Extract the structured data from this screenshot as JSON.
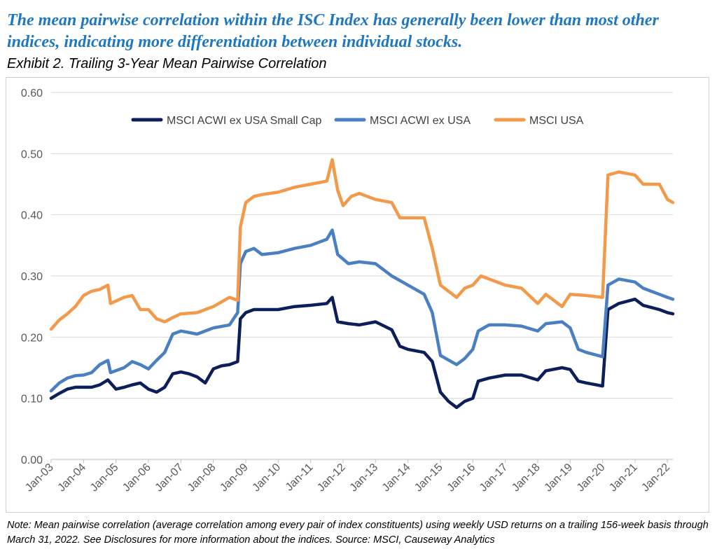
{
  "headline": "The mean pairwise correlation within the ISC Index has generally been lower than most other indices, indicating more differentiation between individual stocks.",
  "exhibit_title": "Exhibit 2. Trailing 3-Year Mean Pairwise Correlation",
  "note": "Note: Mean pairwise correlation (average correlation among every pair of index constituents) using weekly USD returns on a trailing 156-week basis through March 31, 2022.   See Disclosures for more information about the indices.   Source: MSCI, Causeway Analytics",
  "colors": {
    "small_cap": "#0c1f5a",
    "acwi_ex_usa": "#4a7fc1",
    "usa": "#f2994a"
  },
  "chart_data": {
    "type": "line",
    "xlabel": "",
    "ylabel": "",
    "ylim": [
      0,
      0.6
    ],
    "yticks": [
      "0.00",
      "0.10",
      "0.20",
      "0.30",
      "0.40",
      "0.50",
      "0.60"
    ],
    "xticks": [
      "Jan-03",
      "Jan-04",
      "Jan-05",
      "Jan-06",
      "Jan-07",
      "Jan-08",
      "Jan-09",
      "Jan-10",
      "Jan-11",
      "Jan-12",
      "Jan-13",
      "Jan-14",
      "Jan-15",
      "Jan-16",
      "Jan-17",
      "Jan-18",
      "Jan-19",
      "Jan-20",
      "Jan-21",
      "Jan-22"
    ],
    "xrange": [
      "2003-01",
      "2022-03"
    ],
    "grid": "horizontal",
    "legend": "top",
    "series": [
      {
        "name": "MSCI ACWI ex USA Small Cap",
        "color": "#0c1f5a",
        "points": [
          [
            "2003-01",
            0.1
          ],
          [
            "2003-04",
            0.108
          ],
          [
            "2003-07",
            0.115
          ],
          [
            "2003-10",
            0.118
          ],
          [
            "2004-01",
            0.118
          ],
          [
            "2004-04",
            0.118
          ],
          [
            "2004-07",
            0.122
          ],
          [
            "2004-10",
            0.13
          ],
          [
            "2005-01",
            0.115
          ],
          [
            "2005-04",
            0.118
          ],
          [
            "2005-07",
            0.122
          ],
          [
            "2005-10",
            0.125
          ],
          [
            "2006-01",
            0.115
          ],
          [
            "2006-04",
            0.11
          ],
          [
            "2006-07",
            0.118
          ],
          [
            "2006-10",
            0.14
          ],
          [
            "2007-01",
            0.143
          ],
          [
            "2007-04",
            0.14
          ],
          [
            "2007-07",
            0.135
          ],
          [
            "2007-10",
            0.125
          ],
          [
            "2008-01",
            0.148
          ],
          [
            "2008-04",
            0.153
          ],
          [
            "2008-07",
            0.155
          ],
          [
            "2008-10",
            0.16
          ],
          [
            "2008-11",
            0.23
          ],
          [
            "2009-01",
            0.24
          ],
          [
            "2009-04",
            0.245
          ],
          [
            "2009-07",
            0.245
          ],
          [
            "2010-01",
            0.245
          ],
          [
            "2010-07",
            0.25
          ],
          [
            "2011-01",
            0.252
          ],
          [
            "2011-07",
            0.255
          ],
          [
            "2011-09",
            0.265
          ],
          [
            "2011-11",
            0.225
          ],
          [
            "2012-03",
            0.222
          ],
          [
            "2012-07",
            0.22
          ],
          [
            "2013-01",
            0.225
          ],
          [
            "2013-07",
            0.212
          ],
          [
            "2013-10",
            0.185
          ],
          [
            "2014-01",
            0.18
          ],
          [
            "2014-07",
            0.175
          ],
          [
            "2014-10",
            0.16
          ],
          [
            "2015-01",
            0.11
          ],
          [
            "2015-04",
            0.095
          ],
          [
            "2015-07",
            0.085
          ],
          [
            "2015-10",
            0.095
          ],
          [
            "2016-01",
            0.1
          ],
          [
            "2016-03",
            0.128
          ],
          [
            "2016-07",
            0.133
          ],
          [
            "2017-01",
            0.138
          ],
          [
            "2017-07",
            0.138
          ],
          [
            "2018-01",
            0.13
          ],
          [
            "2018-04",
            0.145
          ],
          [
            "2018-10",
            0.15
          ],
          [
            "2019-01",
            0.147
          ],
          [
            "2019-04",
            0.128
          ],
          [
            "2019-07",
            0.125
          ],
          [
            "2020-01",
            0.12
          ],
          [
            "2020-03",
            0.245
          ],
          [
            "2020-07",
            0.255
          ],
          [
            "2021-01",
            0.262
          ],
          [
            "2021-04",
            0.252
          ],
          [
            "2021-10",
            0.245
          ],
          [
            "2022-01",
            0.24
          ],
          [
            "2022-03",
            0.238
          ]
        ]
      },
      {
        "name": "MSCI ACWI ex USA",
        "color": "#4a7fc1",
        "points": [
          [
            "2003-01",
            0.112
          ],
          [
            "2003-04",
            0.125
          ],
          [
            "2003-07",
            0.133
          ],
          [
            "2003-10",
            0.137
          ],
          [
            "2004-01",
            0.138
          ],
          [
            "2004-04",
            0.142
          ],
          [
            "2004-07",
            0.155
          ],
          [
            "2004-10",
            0.162
          ],
          [
            "2004-11",
            0.142
          ],
          [
            "2005-04",
            0.15
          ],
          [
            "2005-07",
            0.16
          ],
          [
            "2005-10",
            0.155
          ],
          [
            "2006-01",
            0.148
          ],
          [
            "2006-04",
            0.162
          ],
          [
            "2006-07",
            0.175
          ],
          [
            "2006-10",
            0.205
          ],
          [
            "2007-01",
            0.21
          ],
          [
            "2007-07",
            0.205
          ],
          [
            "2008-01",
            0.215
          ],
          [
            "2008-07",
            0.22
          ],
          [
            "2008-10",
            0.24
          ],
          [
            "2008-11",
            0.32
          ],
          [
            "2009-01",
            0.34
          ],
          [
            "2009-04",
            0.345
          ],
          [
            "2009-07",
            0.335
          ],
          [
            "2010-01",
            0.338
          ],
          [
            "2010-07",
            0.345
          ],
          [
            "2011-01",
            0.35
          ],
          [
            "2011-07",
            0.36
          ],
          [
            "2011-09",
            0.375
          ],
          [
            "2011-11",
            0.335
          ],
          [
            "2012-03",
            0.32
          ],
          [
            "2012-07",
            0.323
          ],
          [
            "2013-01",
            0.32
          ],
          [
            "2013-07",
            0.3
          ],
          [
            "2014-01",
            0.285
          ],
          [
            "2014-07",
            0.27
          ],
          [
            "2014-10",
            0.24
          ],
          [
            "2015-01",
            0.17
          ],
          [
            "2015-07",
            0.155
          ],
          [
            "2015-10",
            0.165
          ],
          [
            "2016-01",
            0.18
          ],
          [
            "2016-03",
            0.21
          ],
          [
            "2016-07",
            0.22
          ],
          [
            "2017-01",
            0.22
          ],
          [
            "2017-07",
            0.218
          ],
          [
            "2018-01",
            0.21
          ],
          [
            "2018-04",
            0.222
          ],
          [
            "2018-10",
            0.225
          ],
          [
            "2019-01",
            0.215
          ],
          [
            "2019-04",
            0.18
          ],
          [
            "2019-07",
            0.175
          ],
          [
            "2020-01",
            0.168
          ],
          [
            "2020-03",
            0.285
          ],
          [
            "2020-07",
            0.295
          ],
          [
            "2021-01",
            0.29
          ],
          [
            "2021-04",
            0.28
          ],
          [
            "2021-10",
            0.27
          ],
          [
            "2022-01",
            0.265
          ],
          [
            "2022-03",
            0.262
          ]
        ]
      },
      {
        "name": "MSCI USA",
        "color": "#f2994a",
        "points": [
          [
            "2003-01",
            0.213
          ],
          [
            "2003-04",
            0.228
          ],
          [
            "2003-07",
            0.238
          ],
          [
            "2003-10",
            0.25
          ],
          [
            "2004-01",
            0.268
          ],
          [
            "2004-04",
            0.275
          ],
          [
            "2004-07",
            0.278
          ],
          [
            "2004-10",
            0.285
          ],
          [
            "2004-11",
            0.255
          ],
          [
            "2005-04",
            0.265
          ],
          [
            "2005-07",
            0.268
          ],
          [
            "2005-10",
            0.245
          ],
          [
            "2006-01",
            0.245
          ],
          [
            "2006-04",
            0.23
          ],
          [
            "2006-07",
            0.225
          ],
          [
            "2006-10",
            0.232
          ],
          [
            "2007-01",
            0.238
          ],
          [
            "2007-07",
            0.24
          ],
          [
            "2008-01",
            0.25
          ],
          [
            "2008-07",
            0.265
          ],
          [
            "2008-10",
            0.26
          ],
          [
            "2008-11",
            0.38
          ],
          [
            "2009-01",
            0.42
          ],
          [
            "2009-04",
            0.43
          ],
          [
            "2009-07",
            0.433
          ],
          [
            "2010-01",
            0.437
          ],
          [
            "2010-07",
            0.445
          ],
          [
            "2011-01",
            0.45
          ],
          [
            "2011-07",
            0.455
          ],
          [
            "2011-09",
            0.49
          ],
          [
            "2011-11",
            0.44
          ],
          [
            "2012-01",
            0.415
          ],
          [
            "2012-04",
            0.43
          ],
          [
            "2012-07",
            0.435
          ],
          [
            "2013-01",
            0.425
          ],
          [
            "2013-07",
            0.42
          ],
          [
            "2013-10",
            0.395
          ],
          [
            "2014-01",
            0.395
          ],
          [
            "2014-07",
            0.395
          ],
          [
            "2014-10",
            0.345
          ],
          [
            "2015-01",
            0.285
          ],
          [
            "2015-07",
            0.265
          ],
          [
            "2015-10",
            0.28
          ],
          [
            "2016-01",
            0.285
          ],
          [
            "2016-04",
            0.3
          ],
          [
            "2016-07",
            0.295
          ],
          [
            "2017-01",
            0.285
          ],
          [
            "2017-07",
            0.28
          ],
          [
            "2018-01",
            0.255
          ],
          [
            "2018-04",
            0.27
          ],
          [
            "2018-10",
            0.25
          ],
          [
            "2019-01",
            0.27
          ],
          [
            "2019-07",
            0.268
          ],
          [
            "2020-01",
            0.265
          ],
          [
            "2020-03",
            0.465
          ],
          [
            "2020-07",
            0.47
          ],
          [
            "2021-01",
            0.465
          ],
          [
            "2021-04",
            0.45
          ],
          [
            "2021-10",
            0.45
          ],
          [
            "2022-01",
            0.425
          ],
          [
            "2022-03",
            0.42
          ]
        ]
      }
    ]
  }
}
